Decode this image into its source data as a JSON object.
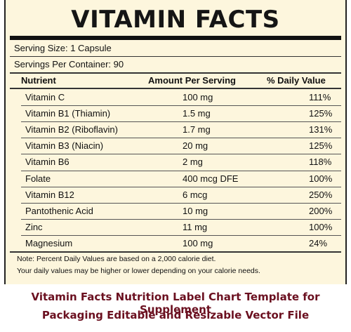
{
  "title": "VITAMIN FACTS",
  "serving_size": "Serving Size: 1 Capsule",
  "servings_per_container": "Servings Per Container: 90",
  "columns": {
    "nutrient": "Nutrient",
    "amount": "Amount Per Serving",
    "daily": "% Daily Value"
  },
  "rows": [
    {
      "nutrient": "Vitamin C",
      "amount": "100 mg",
      "daily": "111%"
    },
    {
      "nutrient": "Vitamin B1 (Thiamin)",
      "amount": "1.5 mg",
      "daily": "125%"
    },
    {
      "nutrient": "Vitamin B2 (Riboflavin)",
      "amount": "1.7 mg",
      "daily": "131%"
    },
    {
      "nutrient": "Vitamin B3 (Niacin)",
      "amount": "20 mg",
      "daily": "125%"
    },
    {
      "nutrient": "Vitamin B6",
      "amount": "2 mg",
      "daily": "118%"
    },
    {
      "nutrient": "Folate",
      "amount": "400 mcg DFE",
      "daily": "100%"
    },
    {
      "nutrient": "Vitamin B12",
      "amount": "6 mcg",
      "daily": "250%"
    },
    {
      "nutrient": "Pantothenic Acid",
      "amount": "10 mg",
      "daily": "200%"
    },
    {
      "nutrient": "Zinc",
      "amount": "11 mg",
      "daily": "100%"
    },
    {
      "nutrient": "Magnesium",
      "amount": "100 mg",
      "daily": "24%"
    }
  ],
  "note_line1": "Note: Percent Daily Values are based on a 2,000 calorie diet.",
  "note_line2": "Your daily values may be higher or lower depending on your calorie needs.",
  "caption_line1": "Vitamin Facts Nutrition Label Chart Template for Supplement",
  "caption_line2": "Packaging Editable and Resizable Vector File",
  "stock_id": "1878708716"
}
